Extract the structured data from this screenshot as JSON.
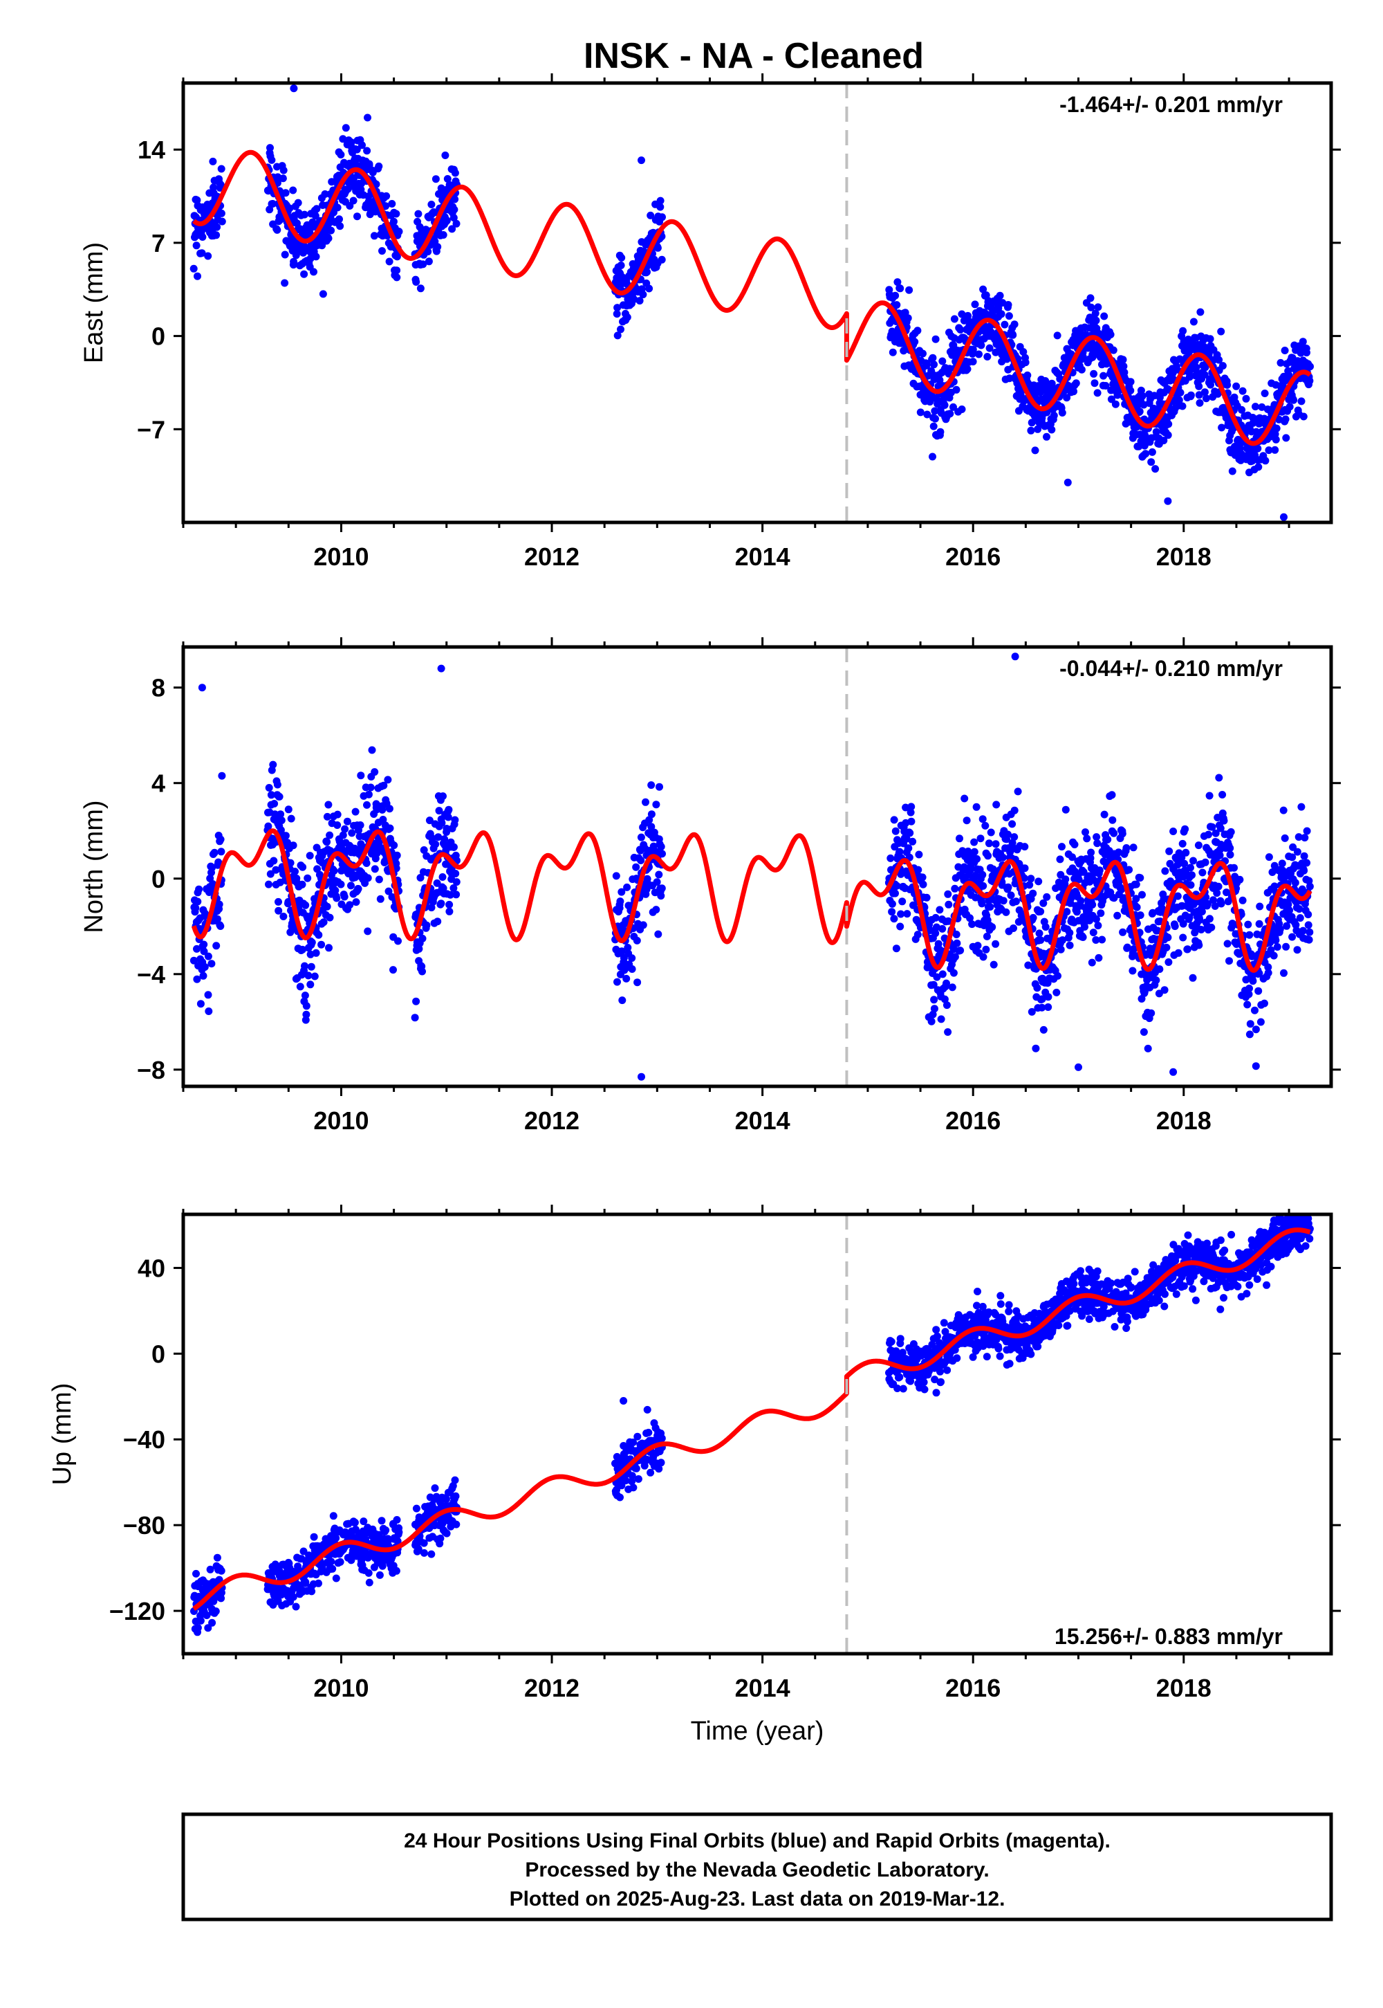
{
  "title": "INSK  - NA - Cleaned",
  "colors": {
    "final_orbits": "#0000ff",
    "model": "#ff0000",
    "frame": "#000000",
    "offset_line": "#c0c0c0"
  },
  "chart_data": [
    {
      "type": "scatter",
      "ylabel": "East (mm)",
      "xlabel": "",
      "rate_label": "-1.464+/- 0.201 mm/yr",
      "xlim": [
        2008.5,
        2019.4
      ],
      "ylim": [
        -14,
        19
      ],
      "yticks": [
        14,
        7,
        0,
        -7
      ],
      "ytick_labels": [
        "14",
        "7",
        "0",
        "−7"
      ],
      "xticks": [
        2010,
        2012,
        2014,
        2016,
        2018
      ],
      "xtick_labels": [
        "2010",
        "2012",
        "2014",
        "2016",
        "2018"
      ],
      "offset_epoch": 2014.8,
      "trend": {
        "t0": 2008.6,
        "y0": 11.5,
        "slope": -1.3,
        "offset": -3.5,
        "ann_amp": 3.0,
        "ann_phase": 2009.15,
        "semi_amp": 0.0,
        "semi_phase": 2009.0
      },
      "noise_sd": 1.3,
      "data_intervals": [
        [
          2008.6,
          2008.87
        ],
        [
          2009.3,
          2010.55
        ],
        [
          2010.7,
          2011.1
        ],
        [
          2012.6,
          2013.05
        ],
        [
          2015.2,
          2019.2
        ]
      ],
      "points_per_year": 300,
      "outliers": [
        [
          2009.55,
          18.6
        ],
        [
          2010.25,
          16.4
        ],
        [
          2012.85,
          13.2
        ],
        [
          2017.85,
          -12.4
        ],
        [
          2018.95,
          -13.6
        ],
        [
          2016.9,
          -11.0
        ]
      ]
    },
    {
      "type": "scatter",
      "ylabel": "North (mm)",
      "xlabel": "",
      "rate_label": "-0.044+/- 0.210 mm/yr",
      "xlim": [
        2008.5,
        2019.4
      ],
      "ylim": [
        -8.7,
        9.7
      ],
      "yticks": [
        8,
        4,
        0,
        -4,
        -8
      ],
      "ytick_labels": [
        "8",
        "4",
        "0",
        "−4",
        "−8"
      ],
      "xticks": [
        2010,
        2012,
        2014,
        2016,
        2018
      ],
      "xtick_labels": [
        "2010",
        "2012",
        "2014",
        "2016",
        "2018"
      ],
      "offset_epoch": 2014.8,
      "trend": {
        "t0": 2008.6,
        "y0": 0.2,
        "slope": -0.04,
        "offset": -1.0,
        "ann_amp": 1.6,
        "ann_phase": 2009.2,
        "semi_amp": 1.1,
        "semi_phase": 2009.4
      },
      "noise_sd": 1.3,
      "data_intervals": [
        [
          2008.6,
          2008.87
        ],
        [
          2009.3,
          2010.55
        ],
        [
          2010.7,
          2011.1
        ],
        [
          2012.6,
          2013.05
        ],
        [
          2015.2,
          2019.2
        ]
      ],
      "points_per_year": 300,
      "outliers": [
        [
          2008.68,
          8.0
        ],
        [
          2010.95,
          8.8
        ],
        [
          2016.4,
          9.3
        ],
        [
          2012.85,
          -8.3
        ],
        [
          2017.0,
          -7.9
        ],
        [
          2017.9,
          -8.1
        ]
      ]
    },
    {
      "type": "scatter",
      "ylabel": "Up (mm)",
      "xlabel": "Time (year)",
      "rate_label": "15.256+/- 0.883 mm/yr",
      "xlim": [
        2008.5,
        2019.4
      ],
      "ylim": [
        -140,
        65
      ],
      "yticks": [
        40,
        0,
        -40,
        -80,
        -120
      ],
      "ytick_labels": [
        "40",
        "0",
        "−40",
        "−80",
        "−120"
      ],
      "xticks": [
        2010,
        2012,
        2014,
        2016,
        2018
      ],
      "xtick_labels": [
        "2010",
        "2012",
        "2014",
        "2016",
        "2018"
      ],
      "offset_epoch": 2014.8,
      "trend": {
        "t0": 2008.6,
        "y0": -115,
        "slope": 15.3,
        "offset": 8.0,
        "ann_amp": 5.0,
        "ann_phase": 2009.0,
        "semi_amp": 0.0,
        "semi_phase": 2009.0
      },
      "noise_sd": 5.5,
      "data_intervals": [
        [
          2008.6,
          2008.87
        ],
        [
          2009.3,
          2010.55
        ],
        [
          2010.7,
          2011.1
        ],
        [
          2012.6,
          2013.05
        ],
        [
          2015.2,
          2019.2
        ]
      ],
      "points_per_year": 300,
      "outliers": [
        [
          2018.85,
          60.0
        ],
        [
          2012.68,
          -22.0
        ],
        [
          2012.95,
          -50.0
        ]
      ]
    }
  ],
  "footer": {
    "line1": "24 Hour Positions Using Final Orbits (blue) and Rapid Orbits (magenta).",
    "line2": "Processed by the Nevada Geodetic Laboratory.",
    "line3": "Plotted on 2025-Aug-23. Last data on 2019-Mar-12."
  }
}
